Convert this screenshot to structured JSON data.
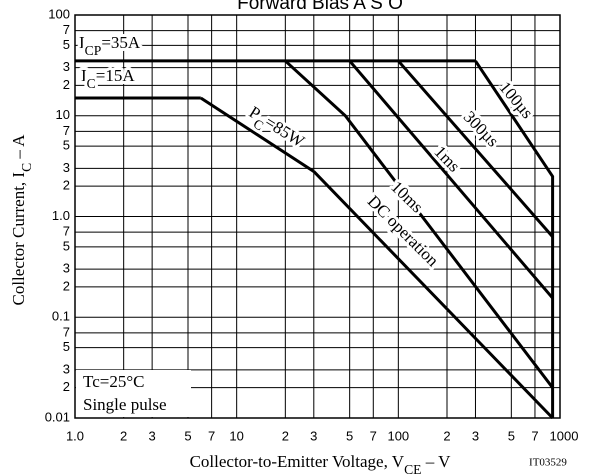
{
  "chart_data": {
    "type": "line",
    "title": "Forward Bias A S O",
    "x_label": [
      "Collector-to-Emitter Voltage, V",
      "CE",
      " – V"
    ],
    "y_label": [
      "Collector Current, I",
      "C",
      " – A"
    ],
    "code": "IT03529",
    "notes": [
      "Tc=25°C",
      "Single pulse"
    ],
    "log_x": true,
    "log_y": true,
    "grid": true,
    "color": "#000000",
    "xlim": [
      1,
      1000
    ],
    "ylim": [
      0.01,
      100
    ],
    "xticks": [
      {
        "value": 1,
        "label": "1.0"
      },
      2,
      3,
      5,
      7,
      10,
      20,
      30,
      50,
      70,
      100,
      200,
      300,
      500,
      700,
      1000
    ],
    "xtick_labels": [
      null,
      "2",
      "3",
      "5",
      "7",
      null,
      "2",
      "3",
      "5",
      "7",
      null,
      "2",
      "3",
      "5",
      "7",
      null
    ],
    "yticks": [
      0.01,
      {
        "value": 0.02,
        "label": "2"
      },
      {
        "value": 0.03,
        "label": "3"
      },
      {
        "value": 0.05,
        "label": "5"
      },
      {
        "value": 0.07,
        "label": "7"
      },
      0.1,
      {
        "value": 0.2,
        "label": "2"
      },
      {
        "value": 0.3,
        "label": "3"
      },
      {
        "value": 0.5,
        "label": "5"
      },
      {
        "value": 0.7,
        "label": "7"
      },
      {
        "value": 1,
        "label": "1.0"
      },
      {
        "value": 2,
        "label": "2"
      },
      {
        "value": 3,
        "label": "3"
      },
      {
        "value": 5,
        "label": "5"
      },
      {
        "value": 7,
        "label": "7"
      },
      10,
      {
        "value": 20,
        "label": "2"
      },
      {
        "value": 30,
        "label": "3"
      },
      {
        "value": 50,
        "label": "5"
      },
      {
        "value": 70,
        "label": "7"
      },
      100
    ],
    "series": [
      {
        "name": [
          "I",
          "CP",
          "=35A"
        ],
        "x": [
          1,
          300
        ],
        "values": [
          35,
          35
        ]
      },
      {
        "name": [
          "I",
          "C",
          "=15A"
        ],
        "x": [
          1,
          6
        ],
        "values": [
          15,
          15
        ]
      },
      {
        "name": [
          "P",
          "C",
          "=85W"
        ],
        "x": [
          6,
          30
        ],
        "values": [
          15,
          2.8
        ]
      },
      {
        "name": "100µs",
        "x": [
          300,
          900,
          900
        ],
        "values": [
          35,
          2.5,
          0.01
        ]
      },
      {
        "name": "300µs",
        "x": [
          100,
          900
        ],
        "values": [
          35,
          0.63
        ]
      },
      {
        "name": "1ms",
        "x": [
          50,
          900
        ],
        "values": [
          35,
          0.155
        ]
      },
      {
        "name": "10ms",
        "x": [
          20,
          47,
          900
        ],
        "values": [
          35,
          10,
          0.02
        ]
      },
      {
        "name": "DC operation",
        "x": [
          30,
          900
        ],
        "values": [
          2.8,
          0.01
        ]
      }
    ]
  }
}
